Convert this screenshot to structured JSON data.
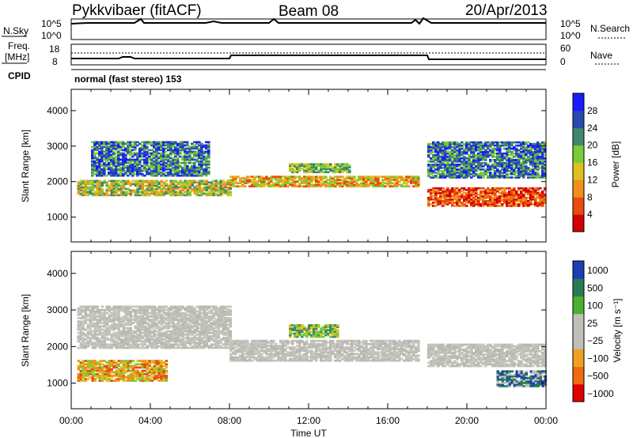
{
  "header": {
    "station": "Pykkvibaer (fitACF)",
    "beam": "Beam 08",
    "date": "20/Apr/2013"
  },
  "top_panels": {
    "nsky_label": "N.Sky",
    "nsky_ticks": [
      "10^5",
      "10^0"
    ],
    "nsearch_label": "N.Search",
    "nsearch_ticks": [
      "10^5",
      "10^0"
    ],
    "freq_label": "Freq.",
    "freq_unit": "[MHz]",
    "freq_ticks": [
      "18",
      "8"
    ],
    "nave_label": "Nave",
    "nave_ticks": [
      "60",
      "0"
    ],
    "cpid_label": "CPID",
    "cpid_text": "normal (fast stereo) 153"
  },
  "chart_data": [
    {
      "type": "heatmap",
      "name": "power",
      "ylabel": "Slant Range [km]",
      "yticks": [
        1000,
        2000,
        3000,
        4000
      ],
      "ylim": [
        300,
        4600
      ],
      "x_ticks": [
        "00:00",
        "04:00",
        "08:00",
        "12:00",
        "16:00",
        "20:00",
        "00:00"
      ],
      "xlim_hours": [
        0,
        24
      ],
      "colorbar": {
        "label": "Power [dB]",
        "ticks": [
          "4",
          "8",
          "12",
          "16",
          "20",
          "24",
          "28"
        ],
        "colors": [
          "#1a1aff",
          "#2a4ab0",
          "#3d8a6a",
          "#7acb3a",
          "#e0c020",
          "#f0901a",
          "#e84a10",
          "#d40000"
        ]
      },
      "bands": [
        {
          "t0": 0.3,
          "t1": 8.0,
          "r0": 1600,
          "r1": 2050,
          "level": "green-orange"
        },
        {
          "t0": 1.0,
          "t1": 7.0,
          "r0": 2150,
          "r1": 3100,
          "level": "blue-green"
        },
        {
          "t0": 8.0,
          "t1": 17.5,
          "r0": 1850,
          "r1": 2150,
          "level": "orange"
        },
        {
          "t0": 11.0,
          "t1": 14.0,
          "r0": 2250,
          "r1": 2500,
          "level": "green"
        },
        {
          "t0": 18.0,
          "t1": 24.0,
          "r0": 1300,
          "r1": 1800,
          "level": "red"
        },
        {
          "t0": 18.0,
          "t1": 24.0,
          "r0": 2100,
          "r1": 3100,
          "level": "blue-green"
        }
      ]
    },
    {
      "type": "heatmap",
      "name": "velocity",
      "ylabel": "Slant Range [km]",
      "yticks": [
        1000,
        2000,
        3000,
        4000
      ],
      "ylim": [
        300,
        4600
      ],
      "x_ticks": [
        "00:00",
        "04:00",
        "08:00",
        "12:00",
        "16:00",
        "20:00",
        "00:00"
      ],
      "xlim_hours": [
        0,
        24
      ],
      "xlabel": "Time UT",
      "colorbar": {
        "label": "Velocity [m s⁻¹]",
        "ticks": [
          "1000",
          "500",
          "100",
          "25",
          "−25",
          "−100",
          "−500",
          "−1000"
        ],
        "colors": [
          "#1a3fb0",
          "#2a7a55",
          "#4ab030",
          "#c0c0b8",
          "#c0c0b8",
          "#f0a020",
          "#f06a10",
          "#e00000"
        ]
      },
      "bands": [
        {
          "t0": 0.3,
          "t1": 8.0,
          "r0": 1950,
          "r1": 3100,
          "level": "gray"
        },
        {
          "t0": 0.3,
          "t1": 4.8,
          "r0": 1050,
          "r1": 1600,
          "level": "orange"
        },
        {
          "t0": 8.0,
          "t1": 17.5,
          "r0": 1600,
          "r1": 2150,
          "level": "gray"
        },
        {
          "t0": 11.0,
          "t1": 13.5,
          "r0": 2250,
          "r1": 2600,
          "level": "green"
        },
        {
          "t0": 18.0,
          "t1": 24.0,
          "r0": 1450,
          "r1": 2050,
          "level": "gray"
        },
        {
          "t0": 21.5,
          "t1": 24.0,
          "r0": 900,
          "r1": 1350,
          "level": "blue"
        }
      ]
    }
  ]
}
